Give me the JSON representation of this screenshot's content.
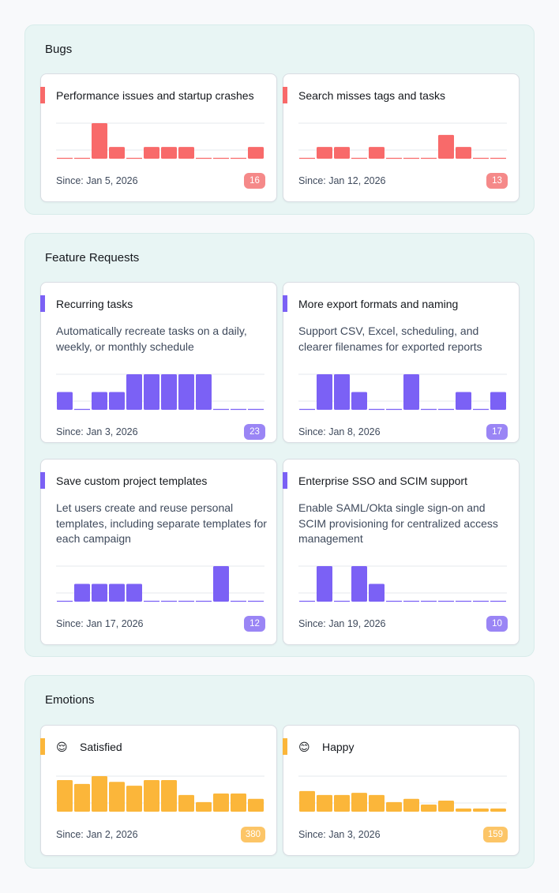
{
  "sections": [
    {
      "title": "Bugs",
      "color": "#f86a6a",
      "badge_color": "#f58989",
      "cards": [
        {
          "title": "Performance issues and startup crashes",
          "description": "",
          "since": "Since: Jan 5, 2026",
          "count": "16",
          "bars": [
            0,
            0,
            1,
            0.33,
            0,
            0.33,
            0.33,
            0.33,
            0,
            0,
            0,
            0.33
          ]
        },
        {
          "title": "Search misses tags and tasks",
          "description": "",
          "since": "Since: Jan 12, 2026",
          "count": "13",
          "bars": [
            0,
            0.33,
            0.33,
            0,
            0.33,
            0,
            0,
            0,
            0.67,
            0.33,
            0,
            0
          ]
        }
      ]
    },
    {
      "title": "Feature Requests",
      "color": "#7b61f5",
      "badge_color": "#9a85f5",
      "cards": [
        {
          "title": "Recurring tasks",
          "description": "Automatically recreate tasks on a daily, weekly, or monthly schedule",
          "since": "Since: Jan 3, 2026",
          "count": "23",
          "bars": [
            0.5,
            0,
            0.5,
            0.5,
            1,
            1,
            1,
            1,
            1,
            0,
            0,
            0
          ]
        },
        {
          "title": "More export formats and naming",
          "description": "Support CSV, Excel, scheduling, and clearer filenames for exported reports",
          "since": "Since: Jan 8, 2026",
          "count": "17",
          "bars": [
            0,
            1,
            1,
            0.5,
            0,
            0,
            1,
            0,
            0,
            0.5,
            0,
            0.5
          ]
        },
        {
          "title": "Save custom project templates",
          "description": "Let users create and reuse personal templates, including separate templates for each campaign",
          "since": "Since: Jan 17, 2026",
          "count": "12",
          "bars": [
            0,
            0.5,
            0.5,
            0.5,
            0.5,
            0,
            0,
            0,
            0,
            1,
            0,
            0
          ]
        },
        {
          "title": "Enterprise SSO and SCIM support",
          "description": "Enable SAML/Okta single sign-on and SCIM provisioning for centralized access management",
          "since": "Since: Jan 19, 2026",
          "count": "10",
          "bars": [
            0,
            1,
            0,
            1,
            0.5,
            0,
            0,
            0,
            0,
            0,
            0,
            0
          ]
        }
      ]
    },
    {
      "title": "Emotions",
      "color": "#fbb63a",
      "badge_color": "#fcc567",
      "cards": [
        {
          "title": "Satisfied",
          "emoji": "😌",
          "description": "",
          "since": "Since: Jan 2, 2026",
          "count": "380",
          "bars": [
            0.89,
            0.78,
            1,
            0.84,
            0.73,
            0.89,
            0.89,
            0.47,
            0.27,
            0.51,
            0.51,
            0.36
          ]
        },
        {
          "title": "Happy",
          "emoji": "😊",
          "description": "",
          "since": "Since: Jan 3, 2026",
          "count": "159",
          "bars": [
            0.58,
            0.47,
            0.47,
            0.53,
            0.47,
            0.27,
            0.36,
            0.2,
            0.31,
            0.09,
            0.09,
            0.09
          ]
        }
      ]
    }
  ]
}
